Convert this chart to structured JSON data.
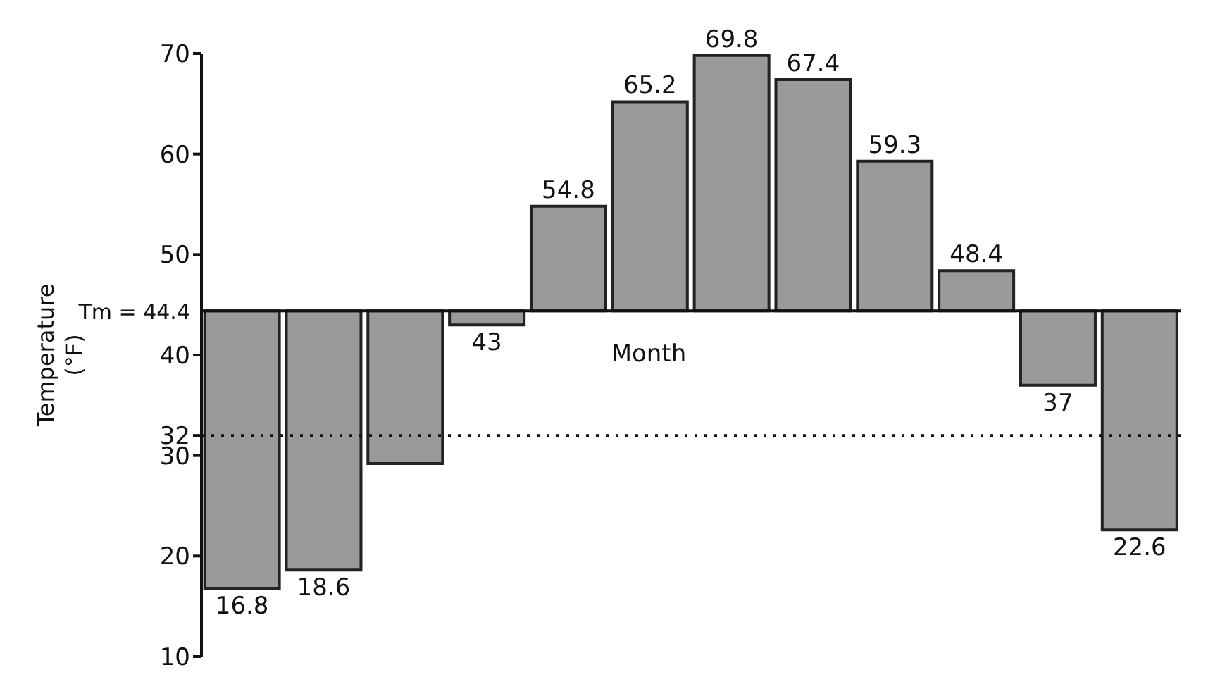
{
  "chart_data": {
    "type": "bar",
    "ylabel": "Temperature\n(°F)",
    "xlabel": "Month",
    "categories": [
      null,
      null,
      null,
      null,
      null,
      null,
      null,
      null,
      null,
      null,
      null,
      null
    ],
    "base": [
      44.4,
      44.4,
      44.4,
      44.4,
      44.4,
      44.4,
      44.4,
      44.4,
      44.4,
      44.4,
      44.4,
      44.4
    ],
    "values": [
      -27.6,
      -25.8,
      -15.2,
      -1.4,
      10.4,
      20.8,
      25.4,
      23,
      14.9,
      4,
      -7.4,
      -21.8
    ],
    "value_labels": [
      "16.8",
      "18.6",
      null,
      "43",
      "54.8",
      "65.2",
      "69.8",
      "67.4",
      "59.3",
      "48.4",
      "37",
      "22.6"
    ],
    "color": "#9a9a9a",
    "ylim": [
      10,
      70
    ],
    "yticks": [
      10,
      20,
      30,
      32,
      40,
      50,
      60,
      70
    ],
    "ref_lines": [
      {
        "axis": "y",
        "value": 44.4,
        "label": "Tm = 44.4",
        "line_style": "solid",
        "color": "#111111"
      },
      {
        "axis": "y",
        "value": 32,
        "line_style": "dotted",
        "color": "#111111"
      }
    ]
  }
}
